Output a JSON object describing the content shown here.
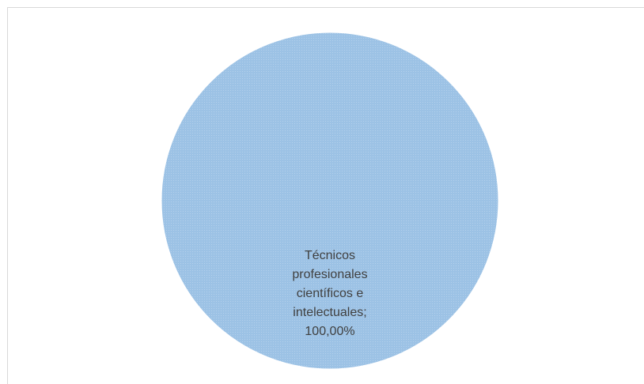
{
  "chart_data": {
    "type": "pie",
    "categories": [
      "Técnicos profesionales científicos e intelectuales"
    ],
    "values": [
      100
    ],
    "value_labels": [
      "100,00%"
    ],
    "label_separator": ";",
    "colors": [
      "#9cc2e5"
    ]
  }
}
